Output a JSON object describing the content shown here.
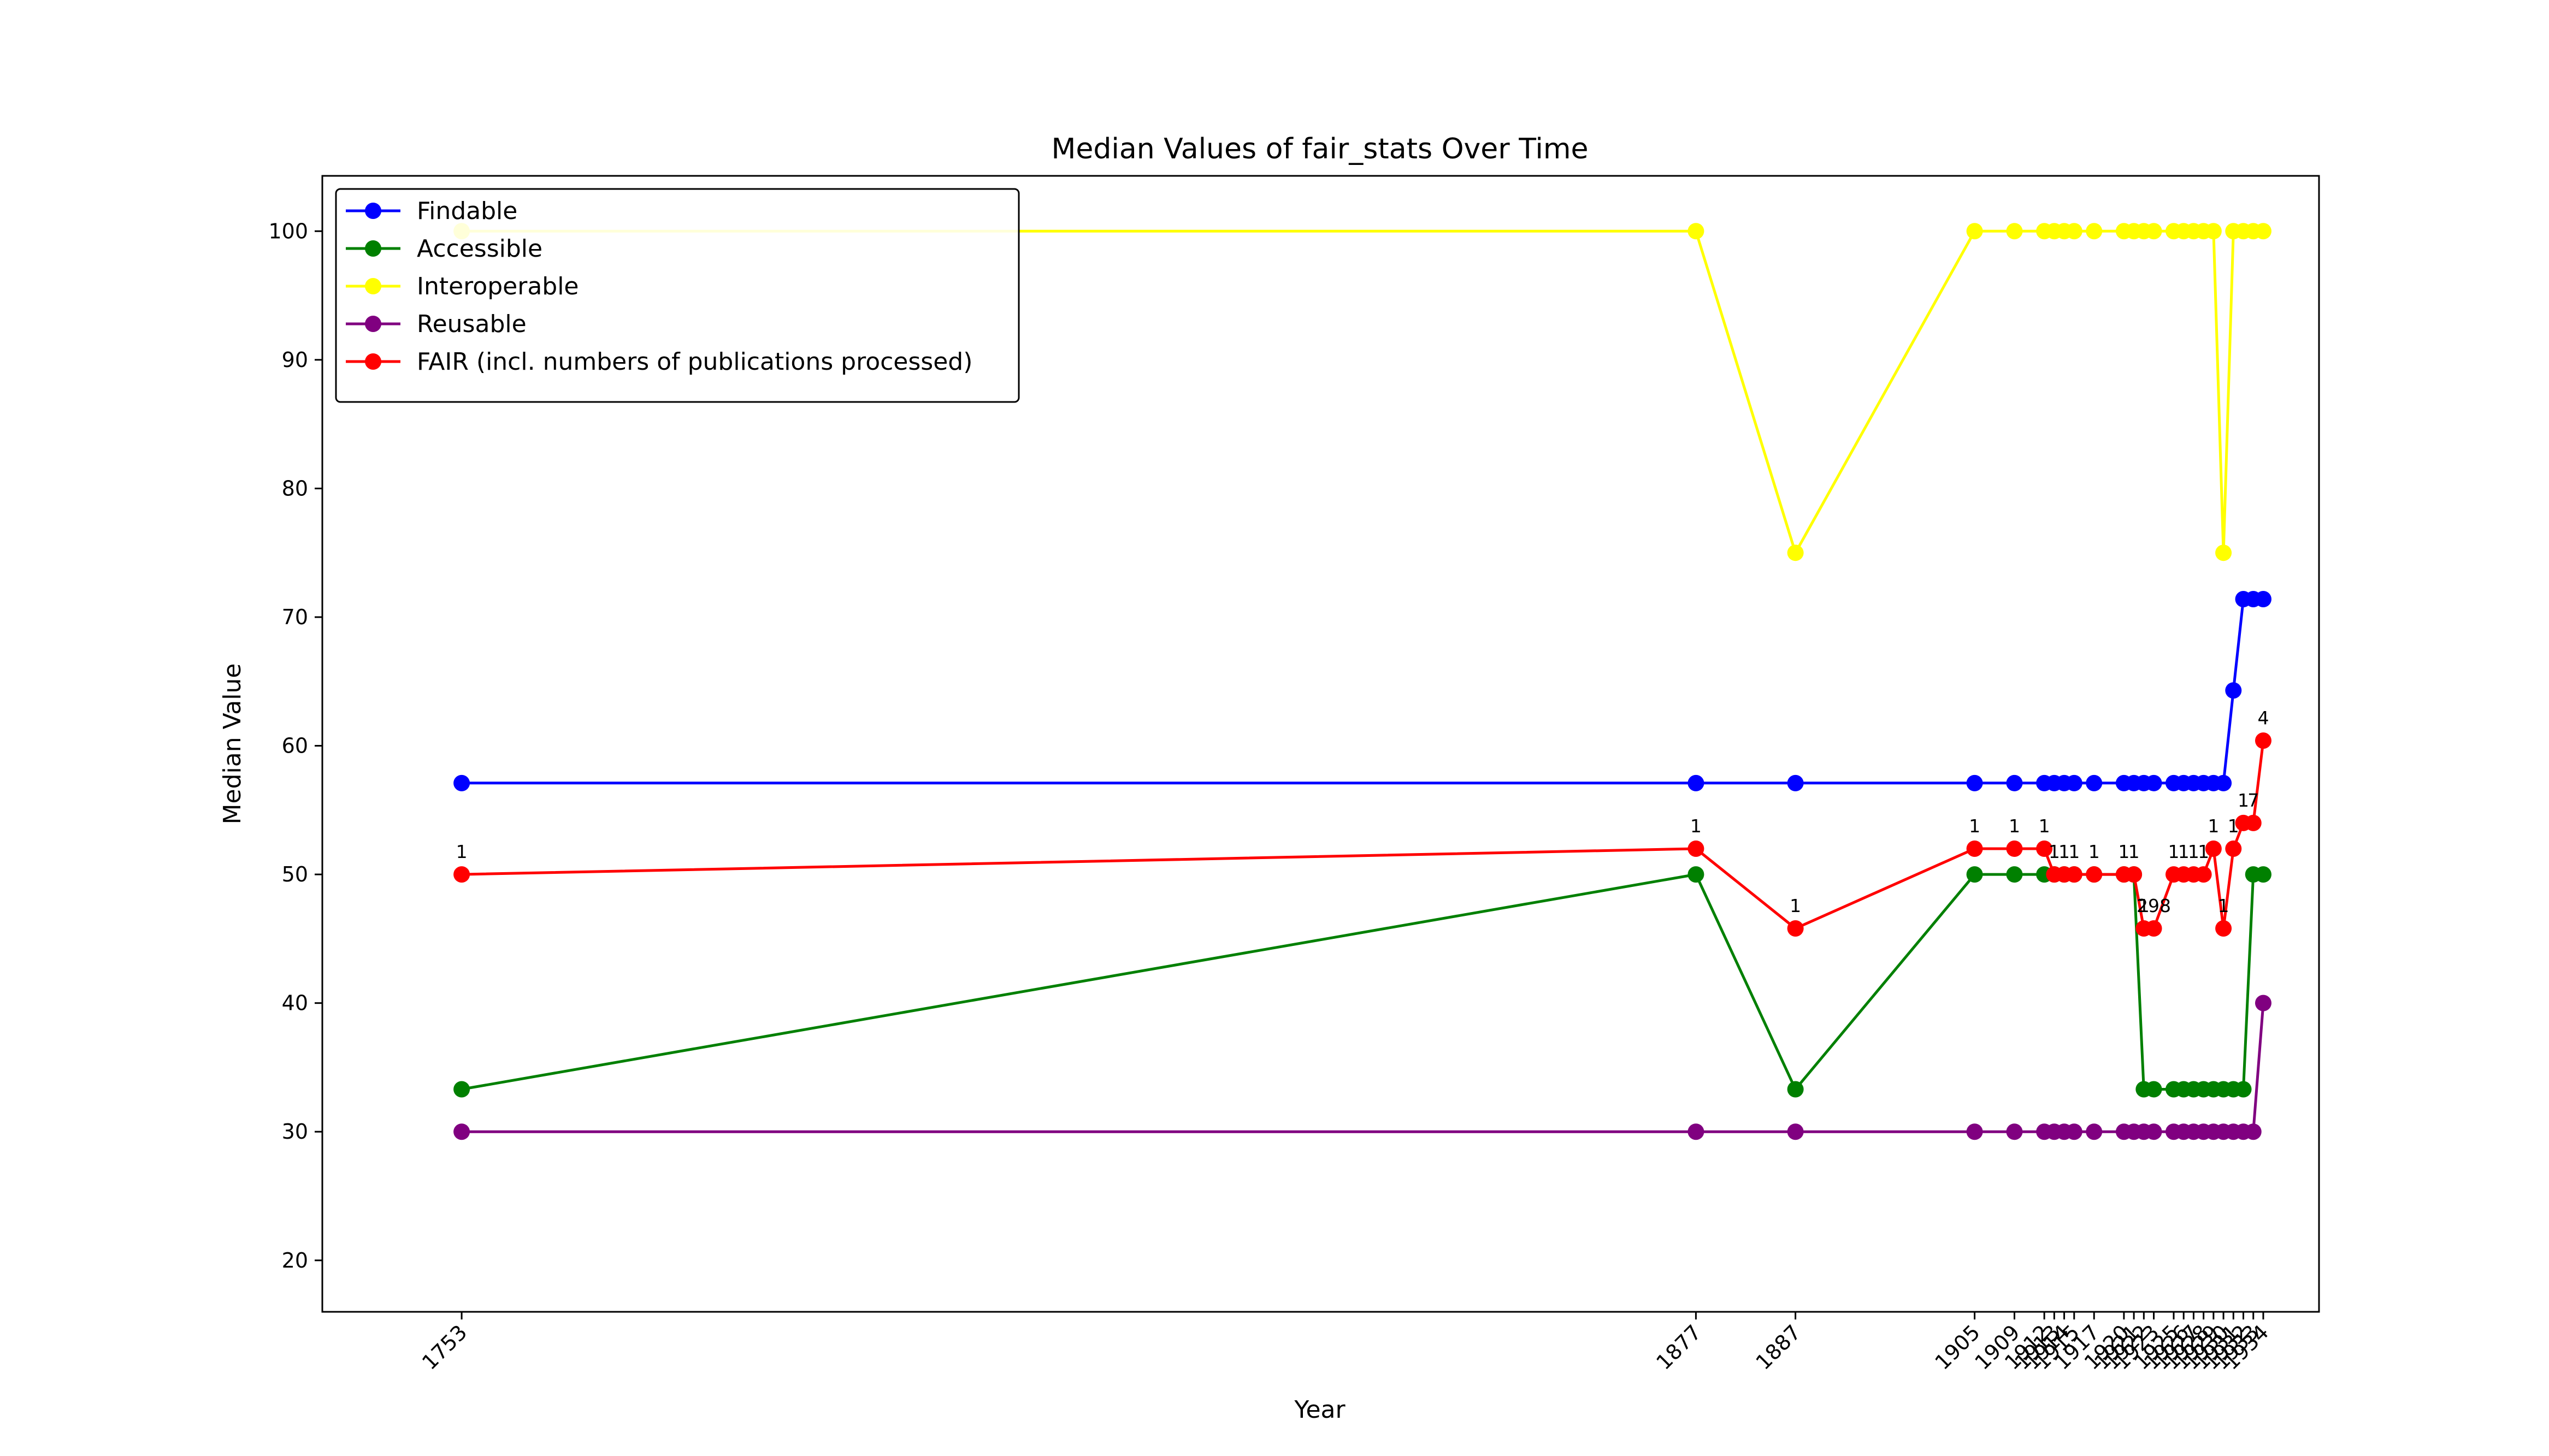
{
  "chart_data": {
    "type": "line",
    "title": "Median Values of fair_stats Over Time",
    "xlabel": "Year",
    "ylabel": "Median Value",
    "yticks": [
      20,
      30,
      40,
      50,
      60,
      70,
      80,
      90,
      100
    ],
    "ylim": [
      16,
      104.3
    ],
    "xlim": [
      1739,
      1939.6
    ],
    "legend_position": "top-left",
    "x": [
      1753,
      1877,
      1887,
      1905,
      1909,
      1912,
      1913,
      1914,
      1915,
      1917,
      1920,
      1921,
      1922,
      1923,
      1925,
      1926,
      1927,
      1928,
      1929,
      1930,
      1931,
      1932,
      1933,
      1934
    ],
    "xtick_labels": [
      "1753",
      "1877",
      "1887",
      "1905",
      "1909",
      "1912",
      "1913",
      "1914",
      "1915",
      "1917",
      "1920",
      "1921",
      "1922",
      "1923",
      "1925",
      "1926",
      "1927",
      "1928",
      "1929",
      "1930",
      "1931",
      "1932",
      "1933",
      "1934"
    ],
    "series": [
      {
        "name": "Findable",
        "color": "#0000ff",
        "values": [
          57.1,
          57.1,
          57.1,
          57.1,
          57.1,
          57.1,
          57.1,
          57.1,
          57.1,
          57.1,
          57.1,
          57.1,
          57.1,
          57.1,
          57.1,
          57.1,
          57.1,
          57.1,
          57.1,
          57.1,
          64.3,
          71.4,
          71.4,
          71.4
        ]
      },
      {
        "name": "Accessible",
        "color": "#008000",
        "values": [
          33.3,
          50,
          33.3,
          50,
          50,
          50,
          50,
          50,
          50,
          50,
          50,
          50,
          33.3,
          33.3,
          33.3,
          33.3,
          33.3,
          33.3,
          33.3,
          33.3,
          33.3,
          33.3,
          50,
          50
        ]
      },
      {
        "name": "Interoperable",
        "color": "#ffff00",
        "values": [
          100,
          100,
          75,
          100,
          100,
          100,
          100,
          100,
          100,
          100,
          100,
          100,
          100,
          100,
          100,
          100,
          100,
          100,
          100,
          75,
          100,
          100,
          100,
          100
        ]
      },
      {
        "name": "Reusable",
        "color": "#800080",
        "values": [
          30,
          30,
          30,
          30,
          30,
          30,
          30,
          30,
          30,
          30,
          30,
          30,
          30,
          30,
          30,
          30,
          30,
          30,
          30,
          30,
          30,
          30,
          30,
          40
        ]
      },
      {
        "name": "FAIR (incl. numbers of publications processed)",
        "color": "#ff0000",
        "values": [
          50,
          52,
          45.8,
          52,
          52,
          52,
          50,
          50,
          50,
          50,
          50,
          50,
          45.8,
          45.8,
          50,
          50,
          50,
          50,
          52,
          45.8,
          52,
          54,
          54,
          60.4
        ]
      }
    ],
    "annotations": [
      "1",
      "1",
      "1",
      "1",
      "1",
      "1",
      "1",
      "1",
      "1",
      "1",
      "1",
      "1",
      "1",
      "298",
      "1",
      "1",
      "1",
      "1",
      "1",
      "1",
      "1",
      "1",
      "7",
      "4"
    ]
  }
}
